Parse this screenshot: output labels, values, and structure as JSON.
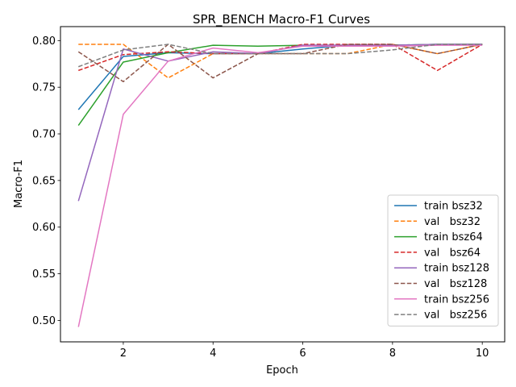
{
  "chart_data": {
    "type": "line",
    "title": "SPR_BENCH Macro-F1 Curves",
    "xlabel": "Epoch",
    "ylabel": "Macro-F1",
    "xlim": [
      0.6,
      10.5
    ],
    "ylim": [
      0.477,
      0.815
    ],
    "x_ticks": [
      2,
      4,
      6,
      8,
      10
    ],
    "y_ticks": [
      0.5,
      0.55,
      0.6,
      0.65,
      0.7,
      0.75,
      0.8
    ],
    "y_tick_labels": [
      "0.50",
      "0.55",
      "0.60",
      "0.65",
      "0.70",
      "0.75",
      "0.80"
    ],
    "grid": false,
    "legend_position": "lower-right",
    "x": [
      1,
      2,
      3,
      4,
      5,
      6,
      7,
      8,
      9,
      10
    ],
    "series": [
      {
        "name": "train bsz32",
        "color": "#1f77b4",
        "dash": "solid",
        "values": [
          0.726,
          0.783,
          0.787,
          0.786,
          0.786,
          0.791,
          0.795,
          0.795,
          0.796,
          0.796
        ]
      },
      {
        "name": "val   bsz32",
        "color": "#ff7f0e",
        "dash": "dashed",
        "values": [
          0.796,
          0.796,
          0.76,
          0.786,
          0.786,
          0.786,
          0.786,
          0.796,
          0.786,
          0.796
        ]
      },
      {
        "name": "train bsz64",
        "color": "#2ca02c",
        "dash": "solid",
        "values": [
          0.709,
          0.777,
          0.787,
          0.795,
          0.794,
          0.795,
          0.795,
          0.795,
          0.796,
          0.796
        ]
      },
      {
        "name": "val   bsz64",
        "color": "#d62728",
        "dash": "dashed",
        "values": [
          0.768,
          0.785,
          0.788,
          0.786,
          0.786,
          0.796,
          0.796,
          0.796,
          0.768,
          0.796
        ]
      },
      {
        "name": "train bsz128",
        "color": "#9467bd",
        "dash": "solid",
        "values": [
          0.628,
          0.791,
          0.778,
          0.788,
          0.786,
          0.795,
          0.795,
          0.795,
          0.796,
          0.796
        ]
      },
      {
        "name": "val   bsz128",
        "color": "#8c564b",
        "dash": "dashed",
        "values": [
          0.788,
          0.756,
          0.796,
          0.76,
          0.786,
          0.786,
          0.796,
          0.796,
          0.786,
          0.796
        ]
      },
      {
        "name": "train bsz256",
        "color": "#e377c2",
        "dash": "solid",
        "values": [
          0.493,
          0.721,
          0.778,
          0.792,
          0.787,
          0.794,
          0.794,
          0.794,
          0.795,
          0.795
        ]
      },
      {
        "name": "val   bsz256",
        "color": "#7f7f7f",
        "dash": "dashed",
        "values": [
          0.772,
          0.79,
          0.796,
          0.786,
          0.786,
          0.786,
          0.786,
          0.79,
          0.796,
          0.796
        ]
      }
    ]
  }
}
